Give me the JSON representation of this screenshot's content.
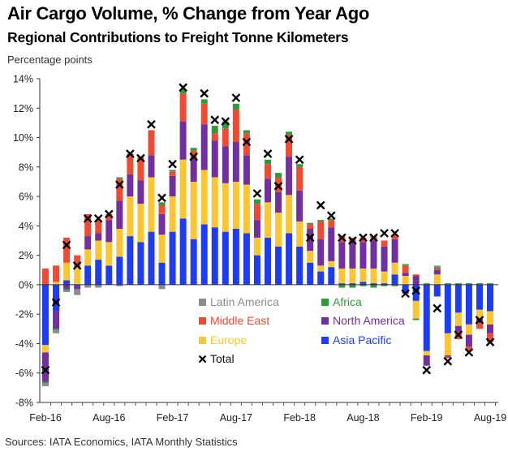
{
  "chart_data": {
    "type": "bar",
    "stacked": true,
    "title": "Air Cargo Volume, % Change from Year Ago",
    "subtitle": "Regional Contributions to Freight Tonne Kilometers",
    "ylabel": "Percentage points",
    "xlabel": "",
    "source": "Sources: IATA Economics, IATA Monthly Statistics",
    "ylim": [
      -8,
      14
    ],
    "yticks": [
      -8,
      -6,
      -4,
      -2,
      0,
      2,
      4,
      6,
      8,
      10,
      12,
      14
    ],
    "ytick_labels": [
      "-8%",
      "-6%",
      "-4%",
      "-2%",
      "0%",
      "2%",
      "4%",
      "6%",
      "8%",
      "10%",
      "12%",
      "14%"
    ],
    "xtick_labels": [
      "Feb-16",
      "Aug-16",
      "Feb-17",
      "Aug-17",
      "Feb-18",
      "Aug-18",
      "Feb-19",
      "Aug-19"
    ],
    "xtick_every": 6,
    "grid": false,
    "legend_position": "bottom-center (inside plot)",
    "categories": [
      "Feb-16",
      "Mar-16",
      "Apr-16",
      "May-16",
      "Jun-16",
      "Jul-16",
      "Aug-16",
      "Sep-16",
      "Oct-16",
      "Nov-16",
      "Dec-16",
      "Jan-17",
      "Feb-17",
      "Mar-17",
      "Apr-17",
      "May-17",
      "Jun-17",
      "Jul-17",
      "Aug-17",
      "Sep-17",
      "Oct-17",
      "Nov-17",
      "Dec-17",
      "Jan-18",
      "Feb-18",
      "Mar-18",
      "Apr-18",
      "May-18",
      "Jun-18",
      "Jul-18",
      "Aug-18",
      "Sep-18",
      "Oct-18",
      "Nov-18",
      "Dec-18",
      "Jan-19",
      "Feb-19",
      "Mar-19",
      "Apr-19",
      "May-19",
      "Jun-19",
      "Jul-19",
      "Aug-19"
    ],
    "series": [
      {
        "name": "Asia Pacific",
        "color": "#1f3cf5",
        "values": [
          -4.1,
          -1.8,
          0.3,
          -0.1,
          1.3,
          1.7,
          1.3,
          1.9,
          3.3,
          2.9,
          3.6,
          1.5,
          3.6,
          4.5,
          3.1,
          4.1,
          3.9,
          3.6,
          3.8,
          3.5,
          2.0,
          3.2,
          2.6,
          3.5,
          2.6,
          1.5,
          0.9,
          1.2,
          0.1,
          0.1,
          0.2,
          0.1,
          0.1,
          0.7,
          -0.6,
          -1.1,
          -4.5,
          -0.8,
          -3.3,
          -1.9,
          -2.7,
          -1.7,
          -1.8
        ]
      },
      {
        "name": "Europe",
        "color": "#fdc630",
        "values": [
          -0.5,
          0.2,
          1.2,
          1.2,
          1.1,
          1.3,
          1.6,
          1.9,
          2.7,
          2.6,
          3.7,
          1.9,
          2.4,
          4.0,
          3.9,
          3.7,
          3.4,
          3.3,
          3.2,
          3.3,
          1.2,
          2.4,
          2.3,
          2.6,
          1.7,
          0.8,
          0.4,
          0.4,
          1.0,
          1.0,
          0.9,
          1.0,
          0.8,
          0.8,
          0.6,
          -1.2,
          -0.3,
          0.7,
          -1.5,
          -0.9,
          -0.7,
          -0.6,
          -0.9
        ]
      },
      {
        "name": "North America",
        "color": "#7030a0",
        "values": [
          -2.0,
          -1.2,
          -0.3,
          -0.2,
          0.9,
          0.5,
          1.5,
          1.9,
          1.5,
          1.6,
          1.5,
          1.4,
          1.4,
          2.6,
          1.6,
          3.1,
          2.5,
          2.5,
          2.7,
          2.0,
          1.2,
          1.6,
          1.4,
          2.6,
          2.1,
          1.5,
          1.8,
          2.3,
          1.8,
          1.9,
          1.8,
          1.9,
          1.7,
          1.6,
          0.2,
          0.6,
          -0.7,
          0.3,
          -0.1,
          -0.4,
          -0.8,
          -0.3,
          -0.6
        ]
      },
      {
        "name": "Middle East",
        "color": "#f04b32",
        "values": [
          1.1,
          1.1,
          1.7,
          0.8,
          1.5,
          0.9,
          0.4,
          1.5,
          1.3,
          1.5,
          1.7,
          0.6,
          0.3,
          1.9,
          0.5,
          1.4,
          0.5,
          1.2,
          2.2,
          1.5,
          1.1,
          1.0,
          1.0,
          1.5,
          1.6,
          0.3,
          1.2,
          0.5,
          0.4,
          0.2,
          0.3,
          0.3,
          0.4,
          0.3,
          0.5,
          0.1,
          0.0,
          0.1,
          -0.1,
          -0.5,
          -0.3,
          -0.4,
          -0.6
        ]
      },
      {
        "name": "Africa",
        "color": "#2e9b3a",
        "values": [
          -0.1,
          -0.1,
          -0.1,
          0.0,
          0.0,
          0.0,
          0.0,
          0.1,
          0.1,
          0.1,
          0.0,
          0.2,
          0.1,
          0.3,
          0.2,
          0.3,
          0.5,
          0.5,
          0.4,
          0.2,
          0.3,
          0.3,
          0.3,
          0.2,
          0.2,
          0.1,
          0.1,
          0.1,
          -0.2,
          -0.2,
          -0.1,
          -0.2,
          -0.1,
          -0.1,
          0.1,
          -0.1,
          0.1,
          0.1,
          0.1,
          0.1,
          0.1,
          0.1,
          0.1
        ]
      },
      {
        "name": "Latin America",
        "color": "#8c8c8c",
        "values": [
          -0.2,
          -0.2,
          -0.1,
          -0.4,
          -0.2,
          -0.2,
          0.0,
          -0.1,
          0.0,
          0.0,
          0.0,
          -0.3,
          0.0,
          0.0,
          0.0,
          0.0,
          0.0,
          0.0,
          0.0,
          0.0,
          0.0,
          0.0,
          0.0,
          0.0,
          0.0,
          0.0,
          0.0,
          0.0,
          0.0,
          0.0,
          0.0,
          0.0,
          0.0,
          0.0,
          0.0,
          0.0,
          0.0,
          0.1,
          0.0,
          0.0,
          0.0,
          0.0,
          0.0
        ]
      }
    ],
    "total": {
      "name": "Total",
      "marker": "x",
      "color": "#000000",
      "values": [
        -5.8,
        -1.2,
        2.7,
        1.3,
        4.5,
        4.5,
        4.8,
        6.8,
        8.9,
        8.6,
        10.9,
        5.9,
        8.2,
        13.4,
        8.7,
        13.0,
        11.2,
        11.1,
        12.7,
        9.7,
        6.2,
        8.9,
        6.7,
        9.9,
        8.5,
        3.2,
        5.4,
        4.7,
        3.2,
        3.0,
        3.2,
        3.2,
        3.5,
        3.5,
        -0.6,
        -0.4,
        -5.8,
        -1.6,
        -5.2,
        -3.4,
        -4.6,
        -2.4,
        -3.9
      ]
    }
  },
  "legend": {
    "items": [
      {
        "label": "Latin America",
        "color": "#8c8c8c",
        "marker": "square"
      },
      {
        "label": "Africa",
        "color": "#2e9b3a",
        "marker": "square"
      },
      {
        "label": "Middle East",
        "color": "#f04b32",
        "marker": "square"
      },
      {
        "label": "North America",
        "color": "#7030a0",
        "marker": "square"
      },
      {
        "label": "Europe",
        "color": "#fdc630",
        "marker": "square"
      },
      {
        "label": "Asia Pacific",
        "color": "#1f3cf5",
        "marker": "square"
      },
      {
        "label": "Total",
        "color": "#000000",
        "marker": "x"
      }
    ]
  }
}
